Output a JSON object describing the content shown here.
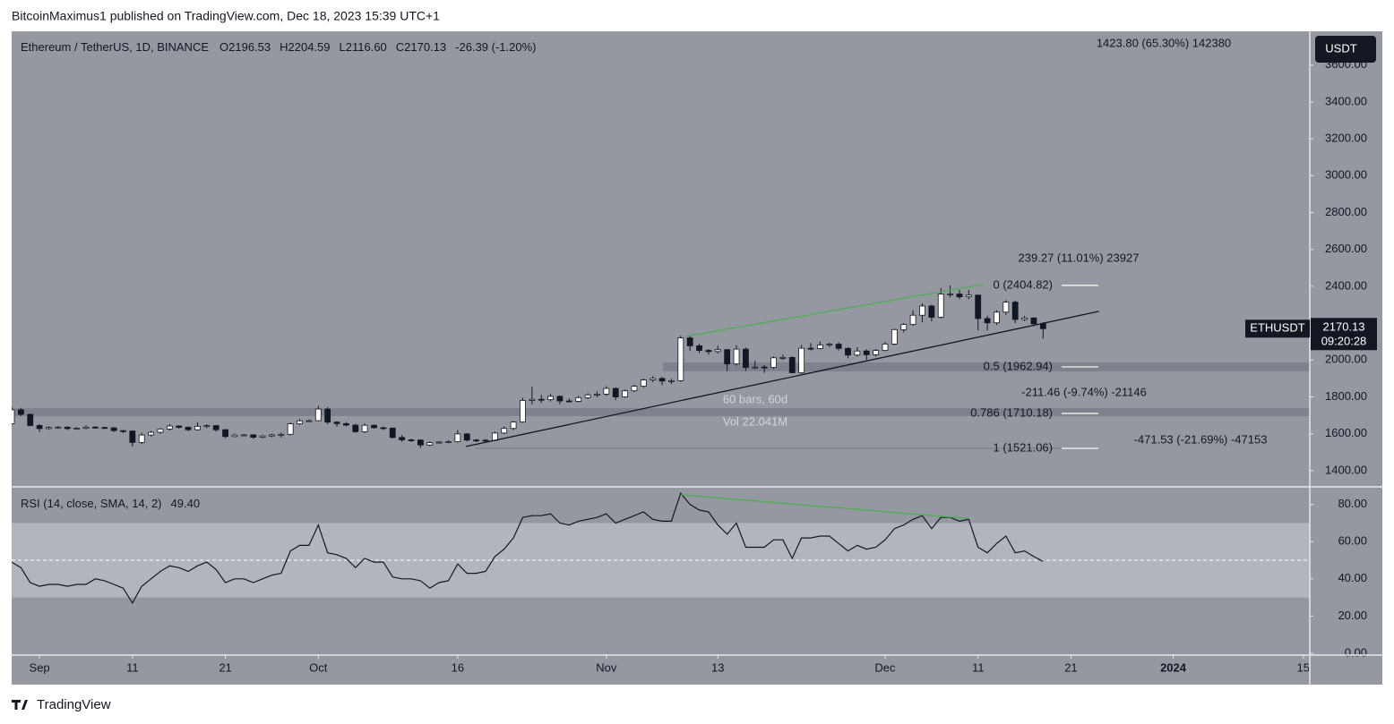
{
  "header": "BitcoinMaximus1 published on TradingView.com, Dec 18, 2023 15:39 UTC+1",
  "footer": "TradingView",
  "chart_data": {
    "type": "candlestick",
    "legend": {
      "symbol": "Ethereum / TetherUS, 1D, BINANCE",
      "ohlc": [
        "O2196.53",
        "H2204.59",
        "L2116.60",
        "C2170.13"
      ],
      "change": "-26.39 (-1.20%)"
    },
    "currency": "USDT",
    "price_tag": {
      "symbol": "ETHUSDT",
      "price": "2170.13",
      "countdown": "09:20:28"
    },
    "up_color": "#ffffff",
    "down_color": "#131722",
    "xlim": [
      0,
      139.7
    ],
    "xticks": [
      {
        "value": 3,
        "label": "Sep"
      },
      {
        "value": 13,
        "label": "11"
      },
      {
        "value": 23,
        "label": "21"
      },
      {
        "value": 33,
        "label": "Oct"
      },
      {
        "value": 48,
        "label": "16"
      },
      {
        "value": 64,
        "label": "Nov"
      },
      {
        "value": 76,
        "label": "13"
      },
      {
        "value": 94,
        "label": "Dec"
      },
      {
        "value": 104,
        "label": "11"
      },
      {
        "value": 114,
        "label": "21"
      },
      {
        "value": 125,
        "label": "2024"
      },
      {
        "value": 139,
        "label": "15"
      }
    ],
    "ylim": [
      1317,
      3783
    ],
    "yticks": [
      {
        "value": 1400,
        "label": "1400.00"
      },
      {
        "value": 1600,
        "label": "1600.00"
      },
      {
        "value": 1800,
        "label": "1800.00"
      },
      {
        "value": 2000,
        "label": "2000.00"
      },
      {
        "value": 2200,
        "label": "2200.00"
      },
      {
        "value": 2400,
        "label": "2400.00"
      },
      {
        "value": 2600,
        "label": "2600.00"
      },
      {
        "value": 2800,
        "label": "2800.00"
      },
      {
        "value": 3000,
        "label": "3000.00"
      },
      {
        "value": 3200,
        "label": "3200.00"
      },
      {
        "value": 3400,
        "label": "3400.00"
      },
      {
        "value": 3600,
        "label": "3600.00"
      }
    ],
    "x": [
      0,
      1,
      2,
      3,
      4,
      5,
      6,
      7,
      8,
      9,
      10,
      11,
      12,
      13,
      14,
      15,
      16,
      17,
      18,
      19,
      20,
      21,
      22,
      23,
      24,
      25,
      26,
      27,
      28,
      29,
      30,
      31,
      32,
      33,
      34,
      35,
      36,
      37,
      38,
      39,
      40,
      41,
      42,
      43,
      44,
      45,
      46,
      47,
      48,
      49,
      50,
      51,
      52,
      53,
      54,
      55,
      56,
      57,
      58,
      59,
      60,
      61,
      62,
      63,
      64,
      65,
      66,
      67,
      68,
      69,
      70,
      71,
      72,
      73,
      74,
      75,
      76,
      77,
      78,
      79,
      80,
      81,
      82,
      83,
      84,
      85,
      86,
      87,
      88,
      89,
      90,
      91,
      92,
      93,
      94,
      95,
      96,
      97,
      98,
      99,
      100,
      101,
      102,
      103,
      104,
      105,
      106,
      107,
      108,
      109,
      110,
      111
    ],
    "candles": [
      [
        1655,
        1745,
        1650,
        1730
      ],
      [
        1730,
        1740,
        1695,
        1705
      ],
      [
        1705,
        1710,
        1640,
        1645
      ],
      [
        1645,
        1652,
        1610,
        1628
      ],
      [
        1628,
        1640,
        1622,
        1634
      ],
      [
        1634,
        1642,
        1628,
        1636
      ],
      [
        1636,
        1640,
        1620,
        1628
      ],
      [
        1628,
        1636,
        1622,
        1630
      ],
      [
        1630,
        1646,
        1625,
        1636
      ],
      [
        1636,
        1642,
        1628,
        1634
      ],
      [
        1634,
        1638,
        1626,
        1632
      ],
      [
        1632,
        1636,
        1610,
        1617
      ],
      [
        1617,
        1620,
        1604,
        1615
      ],
      [
        1615,
        1618,
        1531,
        1553
      ],
      [
        1553,
        1605,
        1545,
        1593
      ],
      [
        1593,
        1616,
        1585,
        1608
      ],
      [
        1608,
        1632,
        1600,
        1626
      ],
      [
        1626,
        1652,
        1618,
        1642
      ],
      [
        1642,
        1646,
        1628,
        1635
      ],
      [
        1635,
        1640,
        1614,
        1622
      ],
      [
        1622,
        1662,
        1618,
        1640
      ],
      [
        1640,
        1652,
        1630,
        1644
      ],
      [
        1644,
        1648,
        1612,
        1622
      ],
      [
        1622,
        1626,
        1576,
        1585
      ],
      [
        1585,
        1600,
        1580,
        1593
      ],
      [
        1593,
        1598,
        1586,
        1594
      ],
      [
        1594,
        1598,
        1572,
        1581
      ],
      [
        1581,
        1594,
        1574,
        1588
      ],
      [
        1588,
        1600,
        1582,
        1594
      ],
      [
        1594,
        1606,
        1580,
        1597
      ],
      [
        1597,
        1660,
        1592,
        1654
      ],
      [
        1654,
        1680,
        1648,
        1670
      ],
      [
        1670,
        1678,
        1664,
        1671
      ],
      [
        1671,
        1752,
        1668,
        1734
      ],
      [
        1734,
        1745,
        1652,
        1663
      ],
      [
        1663,
        1668,
        1638,
        1655
      ],
      [
        1655,
        1664,
        1640,
        1647
      ],
      [
        1647,
        1654,
        1606,
        1611
      ],
      [
        1611,
        1656,
        1605,
        1646
      ],
      [
        1646,
        1650,
        1628,
        1633
      ],
      [
        1633,
        1638,
        1620,
        1631
      ],
      [
        1631,
        1634,
        1574,
        1580
      ],
      [
        1580,
        1594,
        1556,
        1567
      ],
      [
        1567,
        1574,
        1556,
        1566
      ],
      [
        1566,
        1570,
        1524,
        1539
      ],
      [
        1539,
        1558,
        1533,
        1552
      ],
      [
        1552,
        1560,
        1546,
        1555
      ],
      [
        1555,
        1566,
        1548,
        1557
      ],
      [
        1557,
        1620,
        1552,
        1599
      ],
      [
        1599,
        1605,
        1558,
        1566
      ],
      [
        1566,
        1572,
        1555,
        1565
      ],
      [
        1565,
        1572,
        1557,
        1564
      ],
      [
        1564,
        1610,
        1560,
        1604
      ],
      [
        1604,
        1640,
        1598,
        1629
      ],
      [
        1629,
        1670,
        1620,
        1664
      ],
      [
        1664,
        1795,
        1660,
        1781
      ],
      [
        1781,
        1855,
        1760,
        1787
      ],
      [
        1787,
        1812,
        1768,
        1785
      ],
      [
        1785,
        1816,
        1775,
        1803
      ],
      [
        1803,
        1808,
        1760,
        1778
      ],
      [
        1778,
        1792,
        1770,
        1776
      ],
      [
        1776,
        1805,
        1770,
        1796
      ],
      [
        1796,
        1820,
        1788,
        1811
      ],
      [
        1811,
        1830,
        1798,
        1815
      ],
      [
        1815,
        1858,
        1805,
        1846
      ],
      [
        1846,
        1852,
        1782,
        1800
      ],
      [
        1800,
        1840,
        1795,
        1833
      ],
      [
        1833,
        1866,
        1826,
        1858
      ],
      [
        1858,
        1900,
        1850,
        1892
      ],
      [
        1892,
        1912,
        1880,
        1900
      ],
      [
        1900,
        1908,
        1864,
        1886
      ],
      [
        1886,
        1898,
        1870,
        1888
      ],
      [
        1888,
        2132,
        1882,
        2120
      ],
      [
        2120,
        2136,
        2050,
        2077
      ],
      [
        2077,
        2088,
        2038,
        2052
      ],
      [
        2052,
        2060,
        2030,
        2046
      ],
      [
        2046,
        2078,
        2035,
        2056
      ],
      [
        2056,
        2060,
        1940,
        1979
      ],
      [
        1979,
        2080,
        1970,
        2059
      ],
      [
        2059,
        2068,
        1942,
        1960
      ],
      [
        1960,
        1995,
        1950,
        1962
      ],
      [
        1962,
        1972,
        1930,
        1960
      ],
      [
        1960,
        2020,
        1952,
        2012
      ],
      [
        2012,
        2030,
        2000,
        2014
      ],
      [
        2014,
        2020,
        1928,
        1931
      ],
      [
        1931,
        2082,
        1925,
        2064
      ],
      [
        2064,
        2092,
        2052,
        2062
      ],
      [
        2062,
        2100,
        2058,
        2082
      ],
      [
        2082,
        2094,
        2070,
        2086
      ],
      [
        2086,
        2096,
        2052,
        2063
      ],
      [
        2063,
        2070,
        2010,
        2027
      ],
      [
        2027,
        2070,
        2020,
        2049
      ],
      [
        2049,
        2058,
        2000,
        2029
      ],
      [
        2029,
        2060,
        2020,
        2052
      ],
      [
        2052,
        2098,
        2048,
        2087
      ],
      [
        2087,
        2170,
        2080,
        2165
      ],
      [
        2165,
        2200,
        2150,
        2193
      ],
      [
        2193,
        2270,
        2185,
        2243
      ],
      [
        2243,
        2307,
        2205,
        2293
      ],
      [
        2293,
        2300,
        2210,
        2232
      ],
      [
        2232,
        2390,
        2225,
        2358
      ],
      [
        2358,
        2404.82,
        2340,
        2358
      ],
      [
        2358,
        2380,
        2330,
        2343
      ],
      [
        2343,
        2380,
        2330,
        2352
      ],
      [
        2352,
        2355,
        2160,
        2225
      ],
      [
        2225,
        2240,
        2160,
        2202
      ],
      [
        2202,
        2270,
        2190,
        2260
      ],
      [
        2260,
        2325,
        2245,
        2314
      ],
      [
        2314,
        2322,
        2200,
        2220
      ],
      [
        2220,
        2240,
        2212,
        2228
      ],
      [
        2228,
        2232,
        2185,
        2196.53
      ],
      [
        2196.53,
        2204.59,
        2116.6,
        2170.13
      ]
    ],
    "trendlines": [
      {
        "color": "#131722",
        "points": [
          [
            48.9,
            1531
          ],
          [
            117,
            2264
          ]
        ]
      },
      {
        "color": "#4caf50",
        "points": [
          [
            72.5,
            2128
          ],
          [
            104.5,
            2410
          ]
        ]
      }
    ],
    "zones": [
      {
        "from": 70.1,
        "to": 139.7,
        "low": 1938,
        "high": 1987
      },
      {
        "from": 0,
        "to": 139.7,
        "low": 1696,
        "high": 1739
      },
      {
        "from": 49.9,
        "to": 117,
        "low": 1517,
        "high": 1524
      }
    ],
    "fib_levels": [
      {
        "label": "0 (2404.82)",
        "value": 2404.82
      },
      {
        "label": "0.5 (1962.94)",
        "value": 1962.94
      },
      {
        "label": "0.786 (1710.18)",
        "value": 1710.18
      },
      {
        "label": "1 (1521.06)",
        "value": 1521.06
      }
    ],
    "annotations": [
      "1423.80 (65.30%) 142380",
      "239.27 (11.01%) 23927",
      "-211.46 (-9.74%) -21146",
      "-471.53 (-21.69%) -47153",
      "60 bars, 60d",
      "Vol 22.041M"
    ],
    "rsi": {
      "label": "RSI (14, close, SMA, 14, 2)",
      "last_label": "49.40",
      "color": "#131722",
      "ylim": [
        -1,
        89
      ],
      "band": [
        30,
        70
      ],
      "midline": 50,
      "yticks": [
        {
          "value": 0,
          "label": "0.00"
        },
        {
          "value": 20,
          "label": "20.00"
        },
        {
          "value": 40,
          "label": "40.00"
        },
        {
          "value": 60,
          "label": "60.00"
        },
        {
          "value": 80,
          "label": "80.00"
        }
      ],
      "values": [
        49,
        46,
        38,
        36,
        37,
        37,
        36,
        37,
        37,
        40,
        39,
        37,
        35,
        27,
        36,
        40,
        44,
        47,
        46,
        44,
        47,
        49,
        45,
        38,
        40,
        40,
        38,
        40,
        42,
        43,
        55,
        58,
        58,
        69,
        54,
        53,
        51,
        46,
        51,
        49,
        49,
        41,
        40,
        40,
        39,
        35,
        38,
        39,
        48,
        43,
        43,
        44,
        52,
        56,
        62,
        73,
        74,
        74,
        75,
        70,
        69,
        71,
        72,
        73,
        75,
        70,
        72,
        74,
        76,
        72,
        71,
        71,
        86,
        80,
        77,
        76,
        69,
        64,
        70,
        57,
        57,
        57,
        61,
        61,
        51,
        62,
        62,
        63,
        63,
        59,
        55,
        58,
        56,
        57,
        61,
        67,
        69,
        72,
        74,
        67,
        73,
        73,
        71,
        72,
        57,
        54,
        59,
        63,
        54,
        55,
        52,
        49.4
      ],
      "divergence": {
        "color": "#4caf50",
        "points": [
          [
            72,
            85.2
          ],
          [
            103,
            72.4
          ]
        ]
      }
    }
  }
}
